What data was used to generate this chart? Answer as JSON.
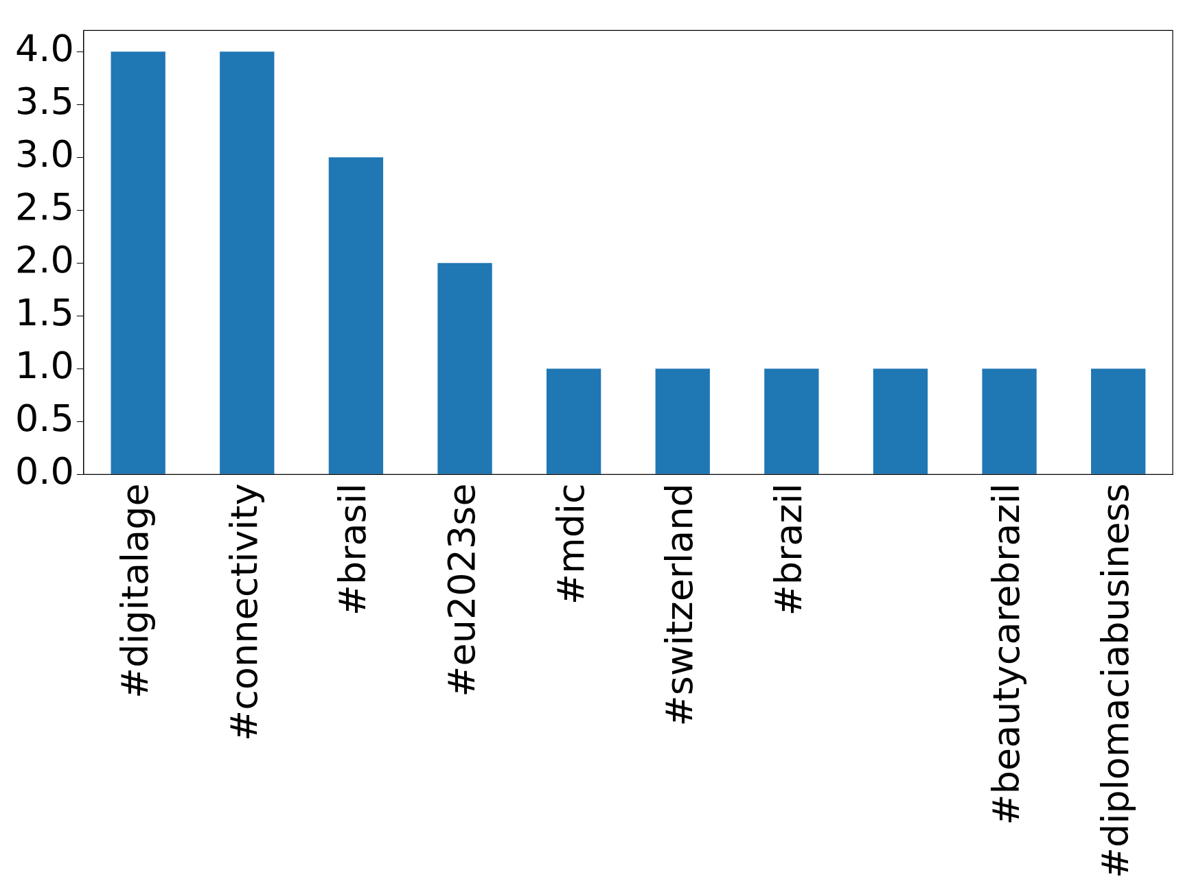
{
  "chart_data": {
    "type": "bar",
    "categories": [
      "#digitalage",
      "#connectivity",
      "#brasil",
      "#eu2023se",
      "#mdic",
      "#switzerland",
      "#brazil",
      null,
      "#beautycarebrazil",
      "#diplomaciabusiness"
    ],
    "values": [
      4,
      4,
      3,
      2,
      1,
      1,
      1,
      1,
      1,
      1
    ],
    "color": "#1f77b4",
    "ylim": [
      0,
      4.2
    ],
    "yticks": [
      {
        "value": 0,
        "label": "0.0"
      },
      {
        "value": 0.5,
        "label": "0.5"
      },
      {
        "value": 1,
        "label": "1.0"
      },
      {
        "value": 1.5,
        "label": "1.5"
      },
      {
        "value": 2,
        "label": "2.0"
      },
      {
        "value": 2.5,
        "label": "2.5"
      },
      {
        "value": 3,
        "label": "3.0"
      },
      {
        "value": 3.5,
        "label": "3.5"
      },
      {
        "value": 4,
        "label": "4.0"
      }
    ]
  }
}
